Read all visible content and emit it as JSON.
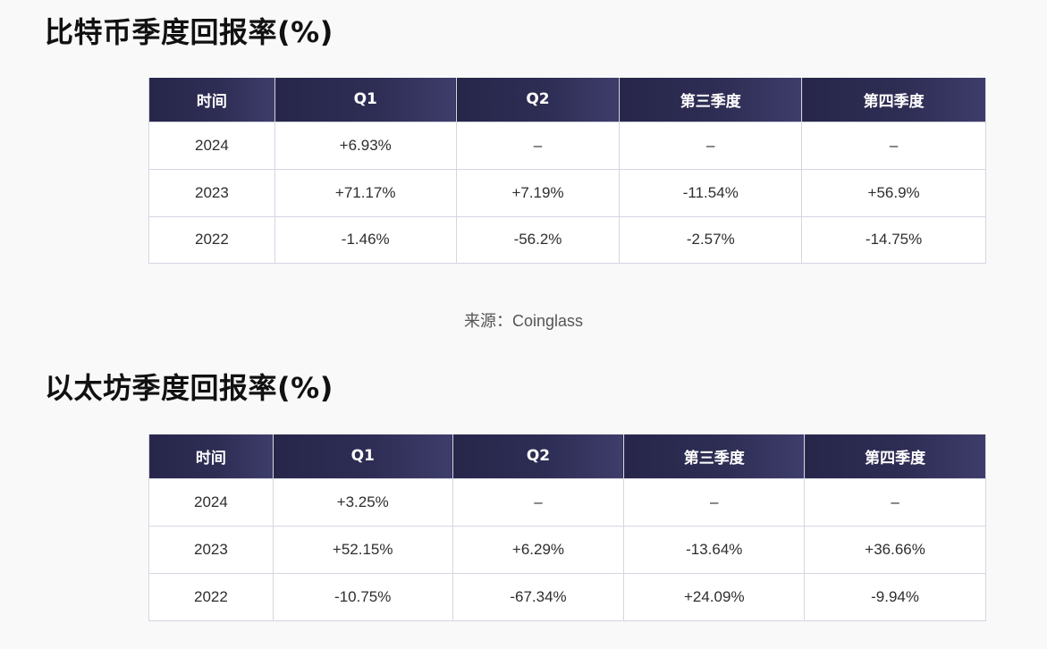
{
  "btc": {
    "title": "比特币季度回报率(%)",
    "headers": [
      "时间",
      "Q1",
      "Q2",
      "第三季度",
      "第四季度"
    ],
    "rows": [
      [
        "2024",
        "+6.93%",
        "–",
        "–",
        "–"
      ],
      [
        "2023",
        "+71.17%",
        "+7.19%",
        "-11.54%",
        "+56.9%"
      ],
      [
        "2022",
        "-1.46%",
        "-56.2%",
        "-2.57%",
        "-14.75%"
      ]
    ]
  },
  "source": "来源：Coinglass",
  "eth": {
    "title": "以太坊季度回报率(%)",
    "headers": [
      "时间",
      "Q1",
      "Q2",
      "第三季度",
      "第四季度"
    ],
    "rows": [
      [
        "2024",
        "+3.25%",
        "–",
        "–",
        "–"
      ],
      [
        "2023",
        "+52.15%",
        "+6.29%",
        "-13.64%",
        "+36.66%"
      ],
      [
        "2022",
        "-10.75%",
        "-67.34%",
        "+24.09%",
        "-9.94%"
      ]
    ]
  },
  "colors": {
    "header_bg": "#2e2d54",
    "header_text": "#ffffff",
    "page_bg": "#f9f9f9"
  }
}
